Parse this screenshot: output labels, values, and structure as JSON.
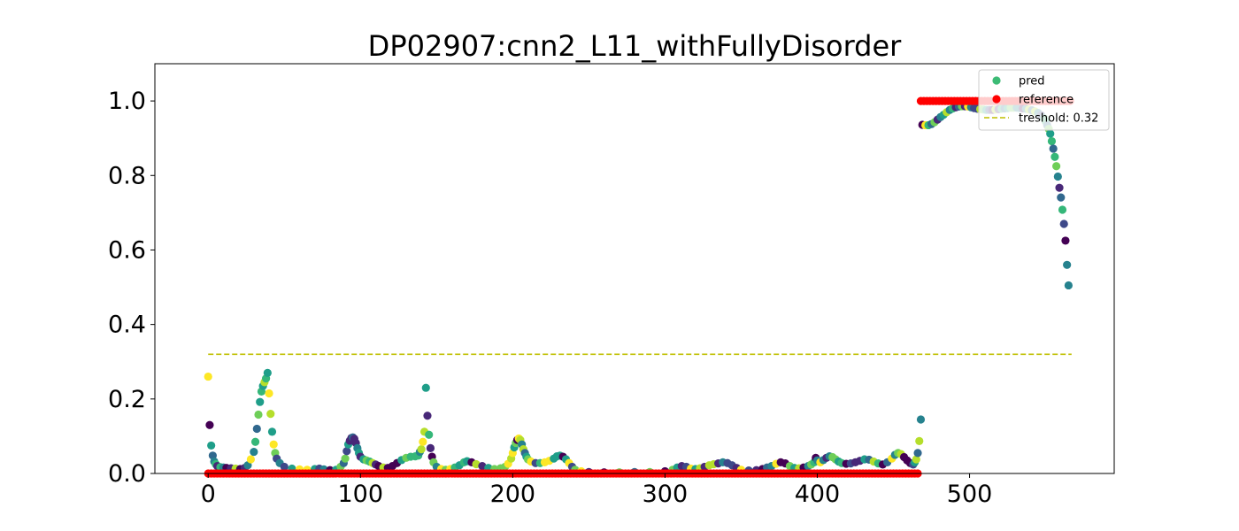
{
  "chart_data": {
    "type": "scatter",
    "title": "DP02907:cnn2_L11_withFullyDisorder",
    "xlim": [
      -35,
      595
    ],
    "ylim": [
      0,
      1.1
    ],
    "xticks": [
      0,
      100,
      200,
      300,
      400,
      500
    ],
    "xtick_labels": [
      "0",
      "100",
      "200",
      "300",
      "400",
      "500"
    ],
    "yticks": [
      0.0,
      0.2,
      0.4,
      0.6,
      0.8,
      1.0
    ],
    "ytick_labels": [
      "0.0",
      "0.2",
      "0.4",
      "0.6",
      "0.8",
      "1.0"
    ],
    "grid": false,
    "legend_position": "top-right",
    "legend": [
      {
        "label": "pred",
        "kind": "marker",
        "color": "#3cbb75"
      },
      {
        "label": "reference",
        "kind": "marker",
        "color": "#ff0000"
      },
      {
        "label": "treshold: 0.32",
        "kind": "dashed-line",
        "color": "#bfbf00"
      }
    ],
    "threshold": {
      "value": 0.32,
      "x_range": [
        0,
        567
      ],
      "color": "#bfbf00"
    },
    "reference": {
      "color": "#ff0000",
      "segments": [
        {
          "x_start": 0,
          "x_end": 467,
          "y": 0
        },
        {
          "x_start": 468,
          "x_end": 566,
          "y": 1
        }
      ]
    },
    "pred": {
      "colormap": "viridis",
      "points": [
        [
          0,
          0.26
        ],
        [
          1,
          0.13
        ],
        [
          2,
          0.075
        ],
        [
          3,
          0.048
        ],
        [
          4,
          0.032
        ],
        [
          5,
          0.025
        ],
        [
          6,
          0.02
        ],
        [
          8,
          0.017
        ],
        [
          10,
          0.016
        ],
        [
          12,
          0.015
        ],
        [
          15,
          0.014
        ],
        [
          18,
          0.013
        ],
        [
          21,
          0.012
        ],
        [
          24,
          0.015
        ],
        [
          26,
          0.022
        ],
        [
          28,
          0.038
        ],
        [
          30,
          0.058
        ],
        [
          31,
          0.085
        ],
        [
          32,
          0.12
        ],
        [
          33,
          0.158
        ],
        [
          34,
          0.192
        ],
        [
          35,
          0.22
        ],
        [
          36,
          0.235
        ],
        [
          37,
          0.245
        ],
        [
          38,
          0.255
        ],
        [
          39,
          0.27
        ],
        [
          40,
          0.215
        ],
        [
          41,
          0.16
        ],
        [
          42,
          0.112
        ],
        [
          43,
          0.078
        ],
        [
          44,
          0.055
        ],
        [
          45,
          0.04
        ],
        [
          47,
          0.028
        ],
        [
          50,
          0.018
        ],
        [
          55,
          0.013
        ],
        [
          60,
          0.011
        ],
        [
          65,
          0.01
        ],
        [
          70,
          0.012
        ],
        [
          73,
          0.013
        ],
        [
          76,
          0.011
        ],
        [
          80,
          0.009
        ],
        [
          84,
          0.01
        ],
        [
          87,
          0.018
        ],
        [
          89,
          0.028
        ],
        [
          90,
          0.04
        ],
        [
          91,
          0.06
        ],
        [
          92,
          0.078
        ],
        [
          93,
          0.088
        ],
        [
          94,
          0.095
        ],
        [
          95,
          0.097
        ],
        [
          96,
          0.093
        ],
        [
          97,
          0.082
        ],
        [
          98,
          0.068
        ],
        [
          99,
          0.055
        ],
        [
          100,
          0.045
        ],
        [
          102,
          0.038
        ],
        [
          104,
          0.035
        ],
        [
          106,
          0.032
        ],
        [
          108,
          0.028
        ],
        [
          110,
          0.024
        ],
        [
          112,
          0.02
        ],
        [
          115,
          0.016
        ],
        [
          118,
          0.015
        ],
        [
          121,
          0.02
        ],
        [
          124,
          0.028
        ],
        [
          127,
          0.036
        ],
        [
          130,
          0.042
        ],
        [
          133,
          0.045
        ],
        [
          136,
          0.046
        ],
        [
          138,
          0.048
        ],
        [
          139,
          0.058
        ],
        [
          140,
          0.065
        ],
        [
          141,
          0.085
        ],
        [
          142,
          0.112
        ],
        [
          143,
          0.23
        ],
        [
          144,
          0.155
        ],
        [
          145,
          0.104
        ],
        [
          146,
          0.068
        ],
        [
          147,
          0.045
        ],
        [
          148,
          0.03
        ],
        [
          150,
          0.018
        ],
        [
          153,
          0.012
        ],
        [
          156,
          0.01
        ],
        [
          159,
          0.012
        ],
        [
          162,
          0.016
        ],
        [
          165,
          0.022
        ],
        [
          168,
          0.03
        ],
        [
          170,
          0.033
        ],
        [
          173,
          0.03
        ],
        [
          176,
          0.025
        ],
        [
          180,
          0.02
        ],
        [
          184,
          0.015
        ],
        [
          188,
          0.012
        ],
        [
          192,
          0.014
        ],
        [
          195,
          0.018
        ],
        [
          197,
          0.026
        ],
        [
          199,
          0.04
        ],
        [
          200,
          0.055
        ],
        [
          201,
          0.07
        ],
        [
          202,
          0.082
        ],
        [
          203,
          0.09
        ],
        [
          204,
          0.094
        ],
        [
          205,
          0.09
        ],
        [
          206,
          0.078
        ],
        [
          207,
          0.065
        ],
        [
          208,
          0.055
        ],
        [
          209,
          0.045
        ],
        [
          210,
          0.038
        ],
        [
          212,
          0.032
        ],
        [
          215,
          0.028
        ],
        [
          218,
          0.028
        ],
        [
          221,
          0.03
        ],
        [
          224,
          0.034
        ],
        [
          227,
          0.04
        ],
        [
          229,
          0.046
        ],
        [
          231,
          0.048
        ],
        [
          233,
          0.045
        ],
        [
          235,
          0.038
        ],
        [
          237,
          0.028
        ],
        [
          239,
          0.018
        ],
        [
          241,
          0.01
        ],
        [
          245,
          0.006
        ],
        [
          250,
          0.004
        ],
        [
          260,
          0.003
        ],
        [
          270,
          0.003
        ],
        [
          280,
          0.004
        ],
        [
          290,
          0.004
        ],
        [
          300,
          0.006
        ],
        [
          305,
          0.01
        ],
        [
          308,
          0.016
        ],
        [
          311,
          0.02
        ],
        [
          314,
          0.018
        ],
        [
          317,
          0.013
        ],
        [
          320,
          0.012
        ],
        [
          323,
          0.014
        ],
        [
          326,
          0.018
        ],
        [
          329,
          0.022
        ],
        [
          332,
          0.025
        ],
        [
          335,
          0.027
        ],
        [
          338,
          0.03
        ],
        [
          341,
          0.028
        ],
        [
          344,
          0.022
        ],
        [
          347,
          0.015
        ],
        [
          350,
          0.01
        ],
        [
          355,
          0.008
        ],
        [
          360,
          0.009
        ],
        [
          364,
          0.012
        ],
        [
          367,
          0.016
        ],
        [
          370,
          0.02
        ],
        [
          373,
          0.026
        ],
        [
          376,
          0.03
        ],
        [
          379,
          0.027
        ],
        [
          382,
          0.02
        ],
        [
          385,
          0.015
        ],
        [
          388,
          0.014
        ],
        [
          391,
          0.016
        ],
        [
          394,
          0.02
        ],
        [
          396,
          0.024
        ],
        [
          398,
          0.03
        ],
        [
          399,
          0.042
        ],
        [
          400,
          0.035
        ],
        [
          402,
          0.03
        ],
        [
          404,
          0.036
        ],
        [
          406,
          0.042
        ],
        [
          408,
          0.046
        ],
        [
          410,
          0.044
        ],
        [
          412,
          0.038
        ],
        [
          414,
          0.032
        ],
        [
          416,
          0.028
        ],
        [
          419,
          0.026
        ],
        [
          422,
          0.027
        ],
        [
          425,
          0.03
        ],
        [
          428,
          0.034
        ],
        [
          431,
          0.038
        ],
        [
          434,
          0.037
        ],
        [
          437,
          0.032
        ],
        [
          440,
          0.027
        ],
        [
          443,
          0.024
        ],
        [
          446,
          0.03
        ],
        [
          449,
          0.04
        ],
        [
          451,
          0.05
        ],
        [
          453,
          0.055
        ],
        [
          455,
          0.052
        ],
        [
          457,
          0.044
        ],
        [
          459,
          0.035
        ],
        [
          461,
          0.028
        ],
        [
          463,
          0.024
        ],
        [
          464,
          0.03
        ],
        [
          465,
          0.038
        ],
        [
          466,
          0.055
        ],
        [
          467,
          0.087
        ],
        [
          468,
          0.145
        ],
        [
          469,
          0.936
        ],
        [
          471,
          0.935
        ],
        [
          473,
          0.935
        ],
        [
          475,
          0.938
        ],
        [
          477,
          0.943
        ],
        [
          479,
          0.95
        ],
        [
          481,
          0.957
        ],
        [
          483,
          0.963
        ],
        [
          485,
          0.97
        ],
        [
          487,
          0.976
        ],
        [
          489,
          0.98
        ],
        [
          491,
          0.983
        ],
        [
          493,
          0.985
        ],
        [
          495,
          0.986
        ],
        [
          497,
          0.986
        ],
        [
          499,
          0.985
        ],
        [
          501,
          0.983
        ],
        [
          503,
          0.981
        ],
        [
          505,
          0.979
        ],
        [
          507,
          0.978
        ],
        [
          509,
          0.977
        ],
        [
          511,
          0.976
        ],
        [
          513,
          0.976
        ],
        [
          515,
          0.976
        ],
        [
          517,
          0.977
        ],
        [
          519,
          0.978
        ],
        [
          521,
          0.979
        ],
        [
          523,
          0.98
        ],
        [
          525,
          0.981
        ],
        [
          527,
          0.982
        ],
        [
          529,
          0.982
        ],
        [
          531,
          0.982
        ],
        [
          533,
          0.981
        ],
        [
          535,
          0.98
        ],
        [
          537,
          0.979
        ],
        [
          539,
          0.977
        ],
        [
          541,
          0.975
        ],
        [
          543,
          0.972
        ],
        [
          545,
          0.968
        ],
        [
          547,
          0.962
        ],
        [
          549,
          0.953
        ],
        [
          550,
          0.945
        ],
        [
          551,
          0.935
        ],
        [
          552,
          0.925
        ],
        [
          553,
          0.912
        ],
        [
          554,
          0.892
        ],
        [
          555,
          0.872
        ],
        [
          556,
          0.85
        ],
        [
          557,
          0.825
        ],
        [
          558,
          0.797
        ],
        [
          559,
          0.767
        ],
        [
          560,
          0.741
        ],
        [
          561,
          0.708
        ],
        [
          562,
          0.67
        ],
        [
          563,
          0.625
        ],
        [
          564,
          0.56
        ],
        [
          565,
          0.505
        ]
      ]
    }
  }
}
